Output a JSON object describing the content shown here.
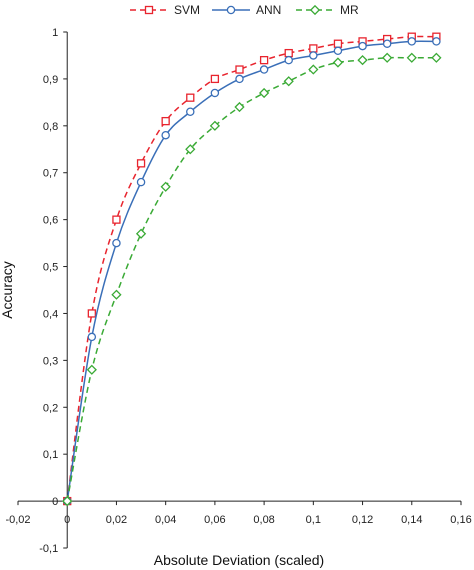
{
  "chart_data": {
    "type": "line",
    "xlabel": "Absolute Deviation (scaled)",
    "ylabel": "Accuracy",
    "xlim": [
      -0.02,
      0.16
    ],
    "ylim": [
      -0.1,
      1.0
    ],
    "x_ticks": [
      "-0,02",
      "0",
      "0,02",
      "0,04",
      "0,06",
      "0,08",
      "0,1",
      "0,12",
      "0,14",
      "0,16"
    ],
    "y_ticks": [
      "-0,1",
      "0",
      "0,1",
      "0,2",
      "0,3",
      "0,4",
      "0,5",
      "0,6",
      "0,7",
      "0,8",
      "0,9",
      "1"
    ],
    "grid": false,
    "legend_position": "top-center",
    "x": [
      0,
      0.01,
      0.02,
      0.03,
      0.04,
      0.05,
      0.06,
      0.07,
      0.08,
      0.09,
      0.1,
      0.11,
      0.12,
      0.13,
      0.14,
      0.15
    ],
    "series": [
      {
        "name": "SVM",
        "color": "#e8242e",
        "line_style": "dashed",
        "marker": "square",
        "values": [
          0,
          0.4,
          0.6,
          0.72,
          0.81,
          0.86,
          0.9,
          0.92,
          0.94,
          0.955,
          0.965,
          0.975,
          0.98,
          0.985,
          0.99,
          0.99
        ]
      },
      {
        "name": "ANN",
        "color": "#3a6fb8",
        "line_style": "solid",
        "marker": "circle",
        "values": [
          0,
          0.35,
          0.55,
          0.68,
          0.78,
          0.83,
          0.87,
          0.9,
          0.92,
          0.94,
          0.95,
          0.96,
          0.97,
          0.975,
          0.98,
          0.98
        ]
      },
      {
        "name": "MR",
        "color": "#3aaa35",
        "line_style": "dashed",
        "marker": "diamond",
        "values": [
          0,
          0.28,
          0.44,
          0.57,
          0.67,
          0.75,
          0.8,
          0.84,
          0.87,
          0.895,
          0.92,
          0.935,
          0.94,
          0.945,
          0.945,
          0.945
        ]
      }
    ]
  }
}
